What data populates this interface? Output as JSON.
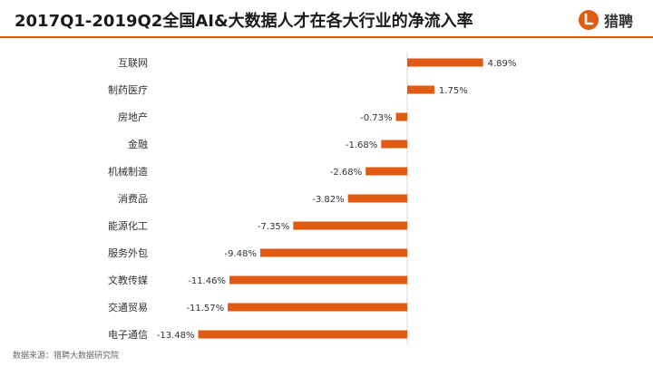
{
  "header": {
    "title": "2017Q1-2019Q2全国AI&大数据人才在各大行业的净流入率",
    "logo_text": "猎聘",
    "logo_letter": "L"
  },
  "colors": {
    "accent": "#e05a12",
    "rule": "#e05a12",
    "text": "#1a1a1a"
  },
  "icons": {
    "logo": "liepin-logo-icon"
  },
  "footer": {
    "source": "数据来源：猎聘大数据研究院"
  },
  "chart_data": {
    "type": "bar",
    "orientation": "horizontal",
    "categories": [
      "互联网",
      "制药医疗",
      "房地产",
      "金融",
      "机械制造",
      "消费品",
      "能源化工",
      "服务外包",
      "文教传媒",
      "交通贸易",
      "电子通信"
    ],
    "values": [
      4.89,
      1.75,
      -0.73,
      -1.68,
      -2.68,
      -3.82,
      -7.35,
      -9.48,
      -11.46,
      -11.57,
      -13.48
    ],
    "value_labels": [
      "4.89%",
      "1.75%",
      "-0.73%",
      "-1.68%",
      "-2.68%",
      "-3.82%",
      "-7.35%",
      "-9.48%",
      "-11.46%",
      "-11.57%",
      "-13.48%"
    ],
    "unit": "%",
    "grid": false,
    "legend": "none"
  }
}
